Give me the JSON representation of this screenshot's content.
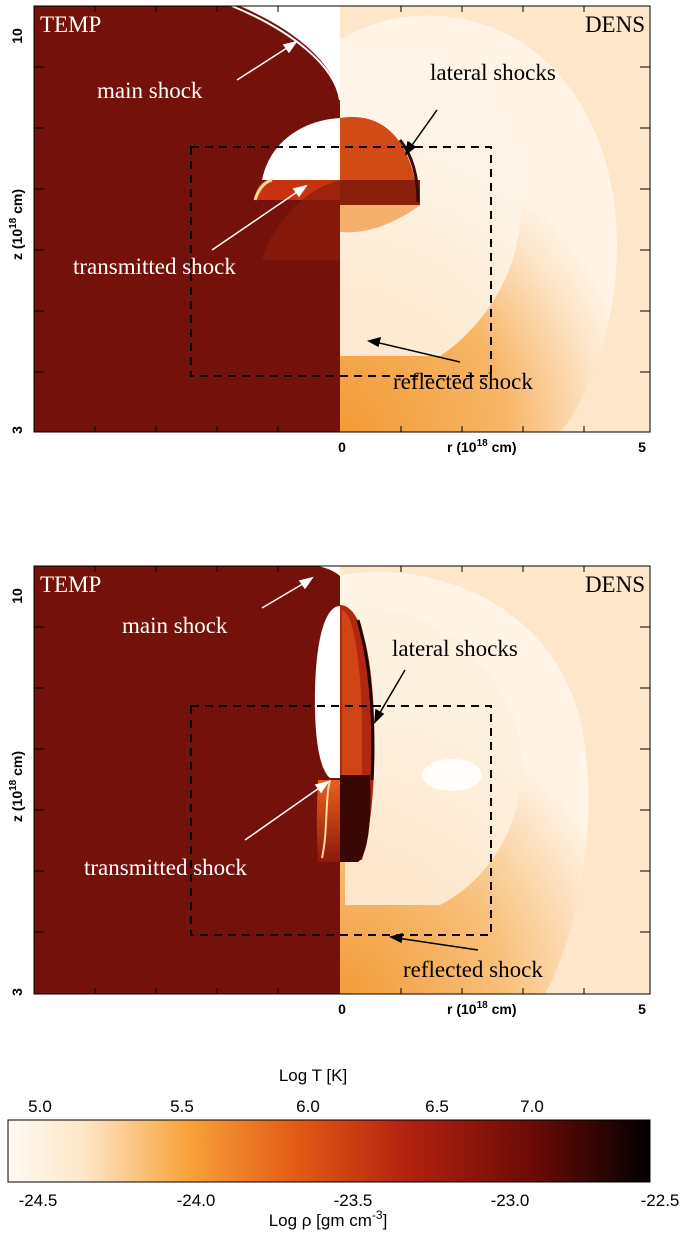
{
  "panels": [
    {
      "left_label": "TEMP",
      "right_label": "DENS",
      "y_tick_top": "10",
      "y_tick_bottom": "3",
      "y_axis_label": "z (10",
      "y_axis_label_exp": "18",
      "y_axis_label_unit": " cm)",
      "x_tick_zero": "0",
      "x_tick_five": "5",
      "x_axis_label": "r (10",
      "x_axis_label_exp": "18",
      "x_axis_label_unit": " cm)",
      "annotations": {
        "main_shock": "main shock",
        "lateral_shocks": "lateral shocks",
        "transmitted_shock": "transmitted shock",
        "reflected_shock": "reflected shock"
      }
    },
    {
      "left_label": "TEMP",
      "right_label": "DENS",
      "y_tick_top": "10",
      "y_tick_bottom": "3",
      "y_axis_label": "z (10",
      "y_axis_label_exp": "18",
      "y_axis_label_unit": " cm)",
      "x_tick_zero": "0",
      "x_tick_five": "5",
      "x_axis_label": "r (10",
      "x_axis_label_exp": "18",
      "x_axis_label_unit": " cm)",
      "annotations": {
        "main_shock": "main shock",
        "lateral_shocks": "lateral shocks",
        "transmitted_shock": "transmitted shock",
        "reflected_shock": "reflected shock"
      }
    }
  ],
  "colorbar": {
    "top_label": "Log T [K]",
    "top_ticks": [
      "5.0",
      "5.5",
      "6.0",
      "6.5",
      "7.0"
    ],
    "bottom_ticks": [
      "-24.5",
      "-24.0",
      "-23.5",
      "-23.0",
      "-22.5"
    ],
    "bottom_label": "Log ρ [gm cm",
    "bottom_label_exp": "-3",
    "bottom_label_close": "]",
    "colors": [
      "#fffaf3",
      "#fde6c6",
      "#f9a23a",
      "#e25a15",
      "#b3220f",
      "#6a0a06",
      "#000000"
    ]
  },
  "colors": {
    "temp_background": "#74110a",
    "dens_background": "#fde6ca",
    "shock_white": "#ffffff",
    "dens_shell": "#f6a03c"
  }
}
